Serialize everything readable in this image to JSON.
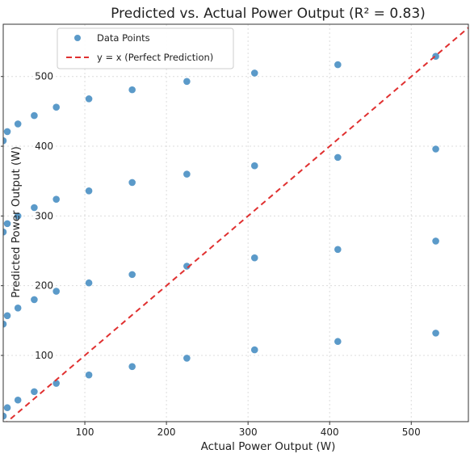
{
  "chart_data": {
    "type": "scatter",
    "title": "Predicted vs. Actual Power Output (R² = 0.83)",
    "xlabel": "Actual Power Output (W)",
    "ylabel": "Predicted Power Output (W)",
    "xlim": [
      0,
      570
    ],
    "ylim": [
      5,
      575
    ],
    "xticks": [
      100,
      200,
      300,
      400,
      500
    ],
    "yticks": [
      100,
      200,
      300,
      400,
      500
    ],
    "grid": true,
    "legend_position": "top-left",
    "series": [
      {
        "name": "Data Points",
        "color": "#5b9ac9",
        "points": [
          [
            0,
            408
          ],
          [
            5,
            421
          ],
          [
            18,
            432
          ],
          [
            38,
            444
          ],
          [
            65,
            456
          ],
          [
            105,
            468
          ],
          [
            158,
            481
          ],
          [
            225,
            493
          ],
          [
            308,
            505
          ],
          [
            410,
            517
          ],
          [
            530,
            529
          ],
          [
            0,
            277
          ],
          [
            5,
            289
          ],
          [
            18,
            300
          ],
          [
            38,
            312
          ],
          [
            65,
            324
          ],
          [
            105,
            336
          ],
          [
            158,
            348
          ],
          [
            225,
            360
          ],
          [
            308,
            372
          ],
          [
            410,
            384
          ],
          [
            530,
            396
          ],
          [
            0,
            145
          ],
          [
            5,
            157
          ],
          [
            18,
            168
          ],
          [
            38,
            180
          ],
          [
            65,
            192
          ],
          [
            105,
            204
          ],
          [
            158,
            216
          ],
          [
            225,
            228
          ],
          [
            308,
            240
          ],
          [
            410,
            252
          ],
          [
            530,
            264
          ],
          [
            0,
            13
          ],
          [
            5,
            25
          ],
          [
            18,
            36
          ],
          [
            38,
            48
          ],
          [
            65,
            60
          ],
          [
            105,
            72
          ],
          [
            158,
            84
          ],
          [
            225,
            96
          ],
          [
            308,
            108
          ],
          [
            410,
            120
          ],
          [
            530,
            132
          ]
        ]
      },
      {
        "name": "y = x (Perfect Prediction)",
        "type": "line",
        "color": "#e03030",
        "dashed": true,
        "points": [
          [
            0,
            0
          ],
          [
            575,
            575
          ]
        ]
      }
    ]
  }
}
